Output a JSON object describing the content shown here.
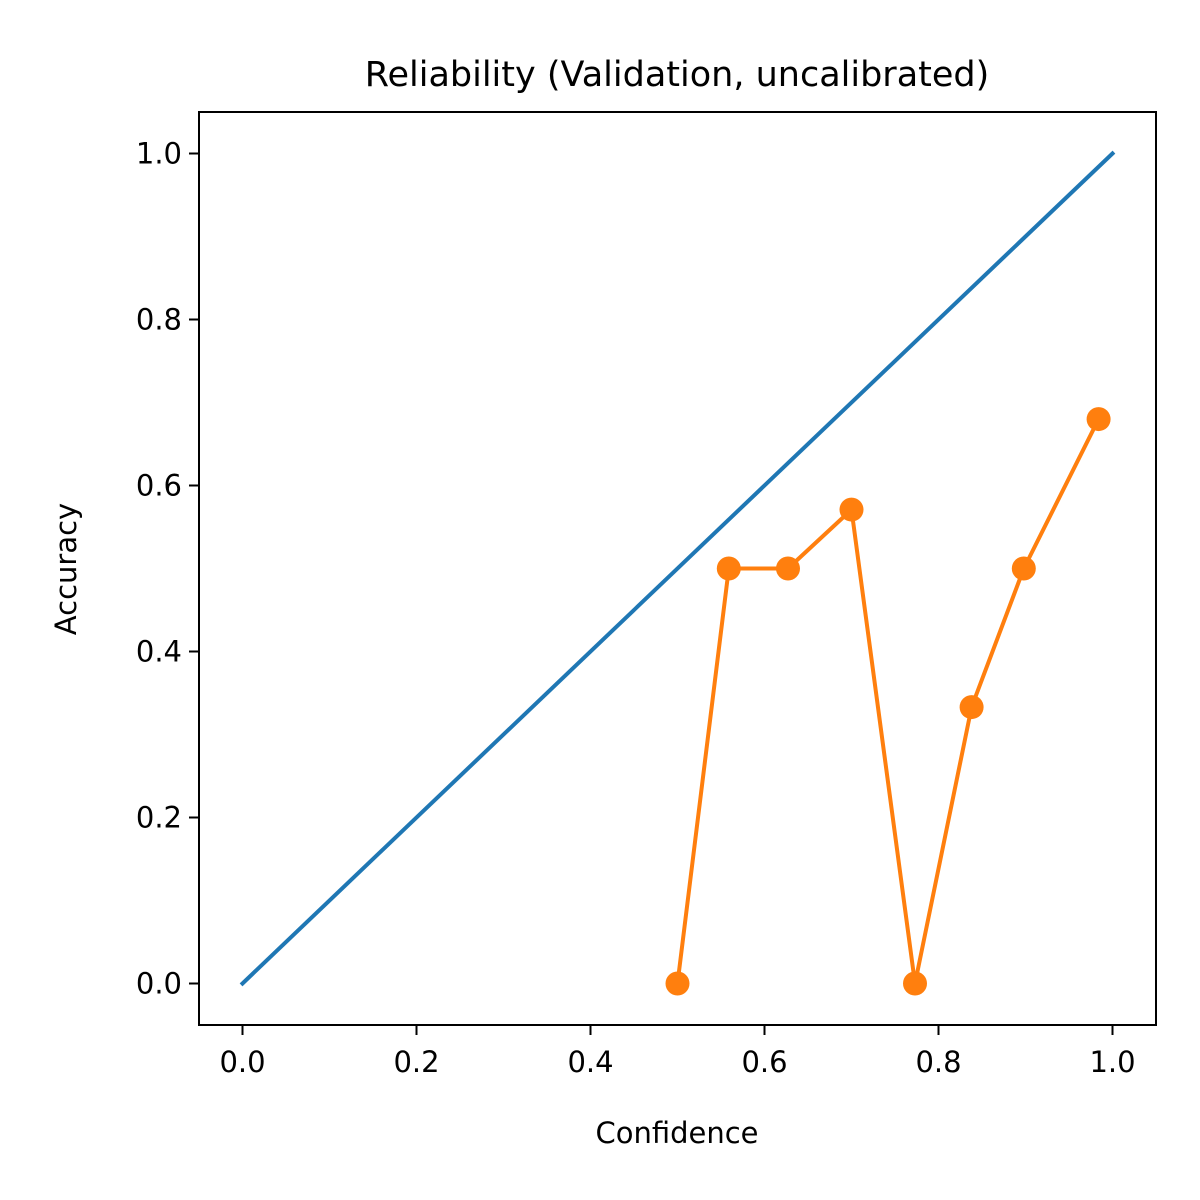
{
  "chart_data": {
    "type": "line",
    "title": "Reliability (Validation, uncalibrated)",
    "xlabel": "Confidence",
    "ylabel": "Accuracy",
    "xlim": [
      -0.05,
      1.05
    ],
    "ylim": [
      -0.05,
      1.05
    ],
    "xticks": [
      0.0,
      0.2,
      0.4,
      0.6,
      0.8,
      1.0
    ],
    "yticks": [
      0.0,
      0.2,
      0.4,
      0.6,
      0.8,
      1.0
    ],
    "xtick_labels": [
      "0.0",
      "0.2",
      "0.4",
      "0.6",
      "0.8",
      "1.0"
    ],
    "ytick_labels": [
      "0.0",
      "0.2",
      "0.4",
      "0.6",
      "0.8",
      "1.0"
    ],
    "grid": false,
    "series": [
      {
        "color": "#1f77b4",
        "markers": false,
        "x": [
          0.0,
          1.0
        ],
        "y": [
          0.0,
          1.0
        ]
      },
      {
        "color": "#ff7f0e",
        "markers": true,
        "x": [
          0.5,
          0.559,
          0.627,
          0.7,
          0.773,
          0.838,
          0.898,
          0.984
        ],
        "y": [
          0.0,
          0.5,
          0.5,
          0.571,
          0.0,
          0.333,
          0.5,
          0.68
        ]
      }
    ]
  }
}
